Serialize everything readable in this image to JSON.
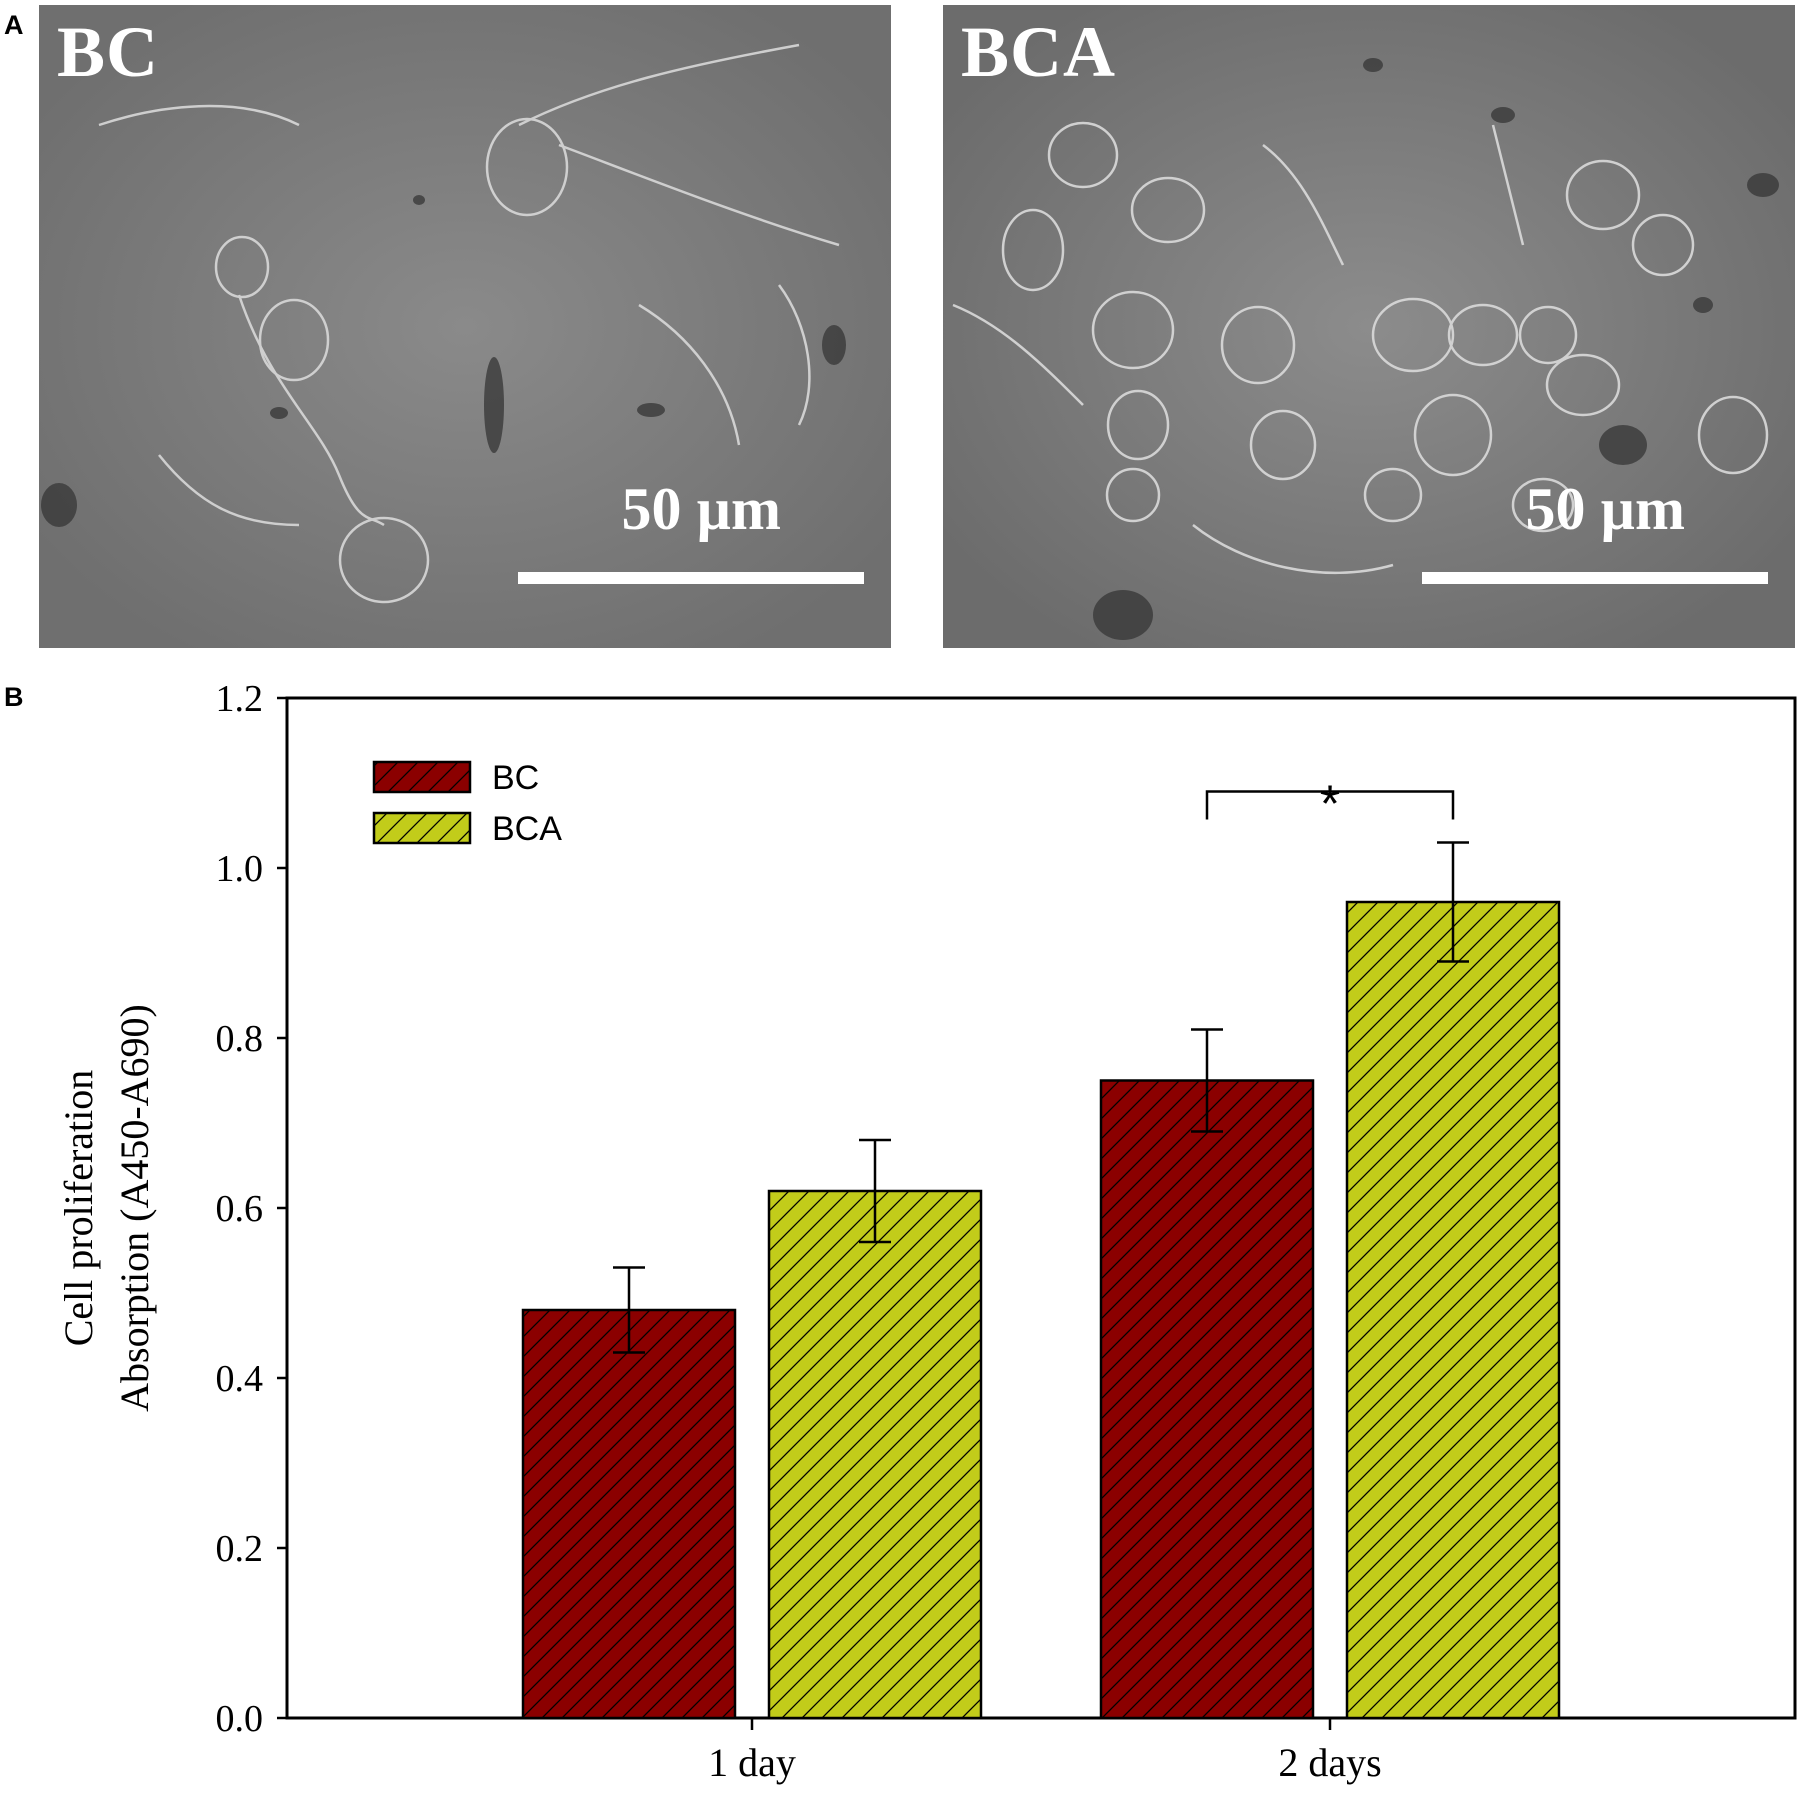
{
  "panel_a": {
    "letter": "A",
    "images": [
      {
        "label": "BC",
        "scale_text": "50 µm"
      },
      {
        "label": "BCA",
        "scale_text": "50 µm"
      }
    ]
  },
  "panel_b": {
    "letter": "B"
  },
  "chart_data": {
    "type": "bar",
    "categories": [
      "1 day",
      "2 days"
    ],
    "series": [
      {
        "name": "BC",
        "values": [
          0.48,
          0.75
        ],
        "errors": [
          0.05,
          0.06
        ],
        "color": "#8b0000"
      },
      {
        "name": "BCA",
        "values": [
          0.62,
          0.96
        ],
        "errors": [
          0.06,
          0.07
        ],
        "color": "#c2cc1a"
      }
    ],
    "ylabel": [
      "Cell proliferation",
      "Absorption (A450-A690)"
    ],
    "xlabel": "",
    "ylim": [
      0,
      1.2
    ],
    "yticks": [
      "0.0",
      "0.2",
      "0.4",
      "0.6",
      "0.8",
      "1.0",
      "1.2"
    ],
    "grid": false,
    "legend": "top-left",
    "pattern": "diagonal hatch",
    "annotations": [
      {
        "text": "*",
        "category": "2 days",
        "between": [
          "BC",
          "BCA"
        ],
        "y": 1.09
      }
    ]
  }
}
